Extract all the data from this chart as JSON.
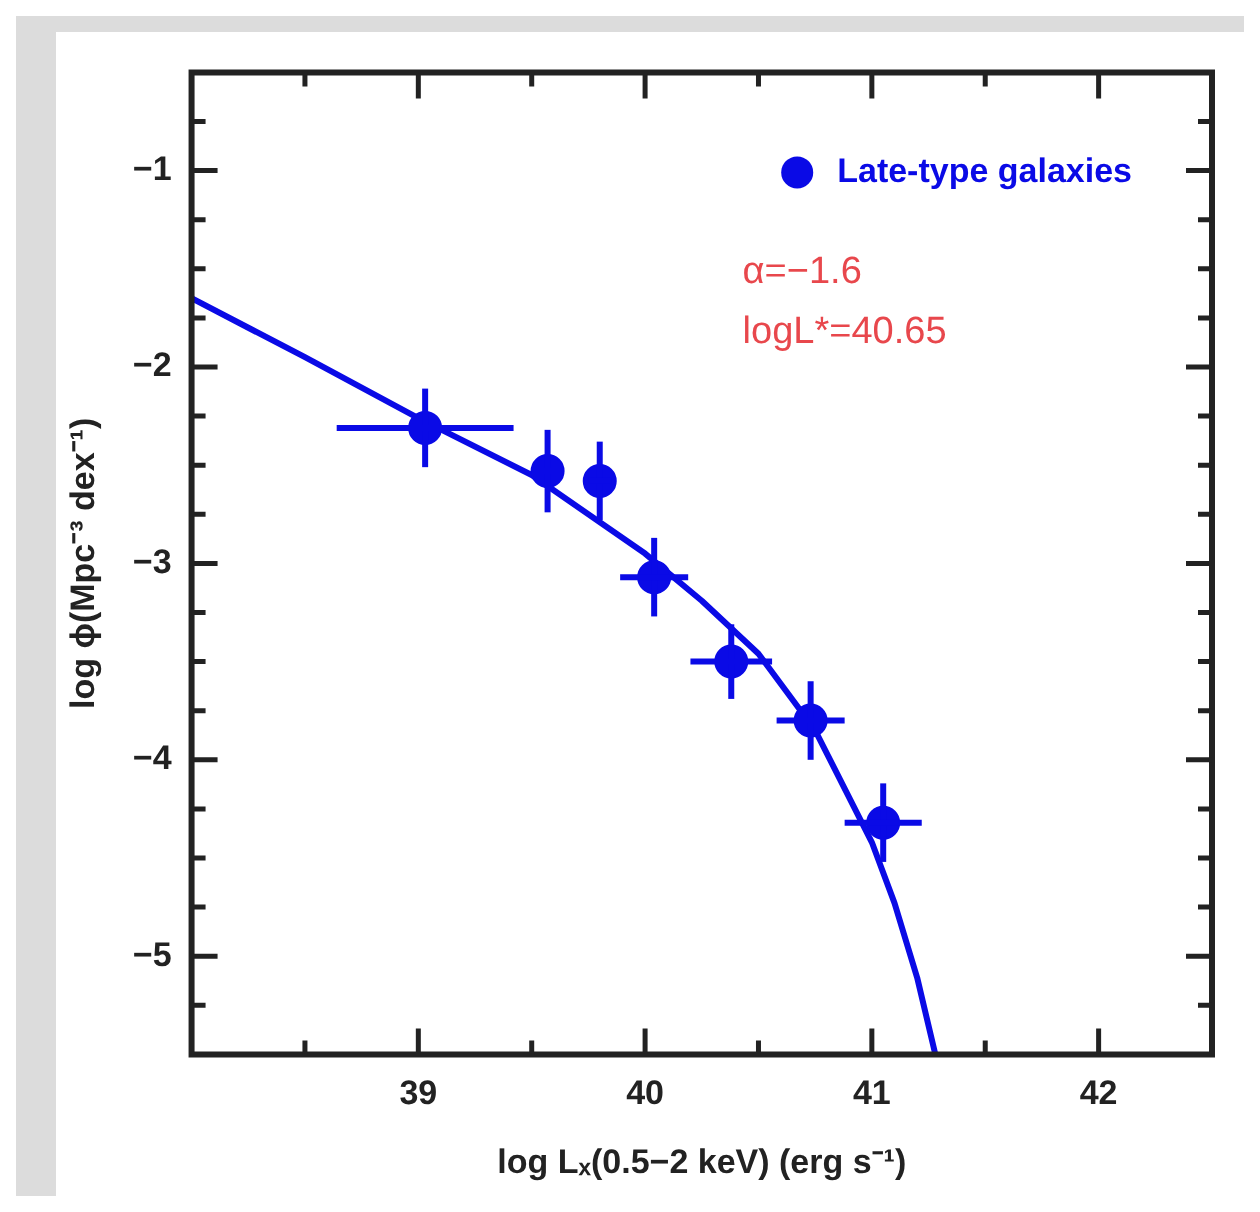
{
  "chart_data": {
    "type": "scatter",
    "xlabel": "log Lₓ(0.5−2 keV) (erg s⁻¹)",
    "ylabel": "log ϕ(Mpc⁻³ dex⁻¹)",
    "xlim": [
      38,
      42.5
    ],
    "ylim": [
      -5.5,
      -0.5
    ],
    "xticks": [
      {
        "value": 38.5,
        "label": null
      },
      39,
      {
        "value": 39.5,
        "label": null
      },
      40,
      {
        "value": 40.5,
        "label": null
      },
      41,
      {
        "value": 41.5,
        "label": null
      },
      42
    ],
    "yticks": [
      {
        "value": -5.25,
        "label": null
      },
      -5,
      {
        "value": -4.75,
        "label": null
      },
      {
        "value": -4.5,
        "label": null
      },
      {
        "value": -4.25,
        "label": null
      },
      -4,
      {
        "value": -3.75,
        "label": null
      },
      {
        "value": -3.5,
        "label": null
      },
      {
        "value": -3.25,
        "label": null
      },
      -3,
      {
        "value": -2.75,
        "label": null
      },
      {
        "value": -2.5,
        "label": null
      },
      {
        "value": -2.25,
        "label": null
      },
      -2,
      {
        "value": -1.75,
        "label": null
      },
      {
        "value": -1.5,
        "label": null
      },
      {
        "value": -1.25,
        "label": null
      },
      -1,
      {
        "value": -0.75,
        "label": null
      }
    ],
    "grid": false,
    "legend": "top right",
    "marker": "circle",
    "series": [
      {
        "name": "Late-type galaxies",
        "type": "scatter",
        "color": "#0a0ae6",
        "x": [
          39.03,
          39.57,
          39.8,
          40.04,
          40.38,
          40.73,
          41.05
        ],
        "values": [
          -2.31,
          -2.53,
          -2.58,
          -3.07,
          -3.5,
          -3.8,
          -4.32
        ],
        "errors": [
          0.2,
          0.21,
          0.2,
          0.2,
          0.19,
          0.2,
          0.2
        ],
        "xerrors": [
          0.39,
          0.07,
          0.05,
          0.15,
          0.18,
          0.15,
          0.17
        ]
      },
      {
        "type": "line",
        "color": "#0a0ae6",
        "marker": "none",
        "line_style": "solid",
        "x": [
          38,
          38.5,
          39,
          39.5,
          40,
          40.25,
          40.5,
          40.75,
          41,
          41.1,
          41.2,
          41.28
        ],
        "values": [
          -1.65,
          -1.95,
          -2.26,
          -2.55,
          -2.95,
          -3.19,
          -3.46,
          -3.85,
          -4.42,
          -4.73,
          -5.11,
          -5.5
        ]
      }
    ],
    "annotations": [
      "α=−1.6",
      "logL*=40.65"
    ]
  }
}
